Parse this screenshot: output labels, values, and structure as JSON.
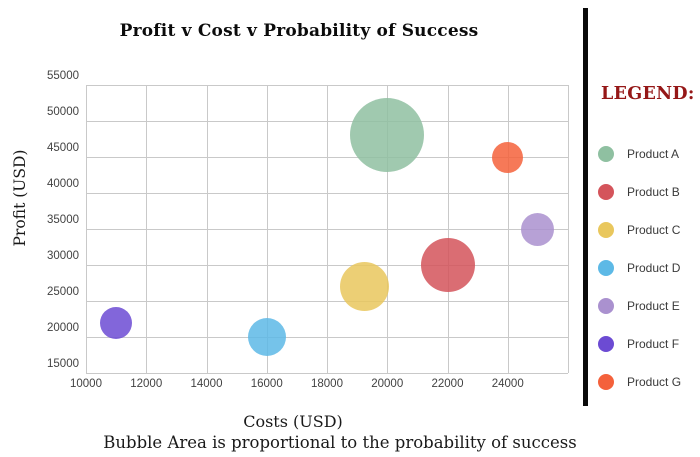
{
  "chart_data": {
    "type": "bubble",
    "title": "Profit v Cost v Probability of Success",
    "xlabel": "Costs (USD)",
    "ylabel": "Profit (USD)",
    "caption": "Bubble Area is proportional to the probability of success",
    "legend_title": "LEGEND:",
    "legend_position": "right",
    "grid": true,
    "xlim": [
      10000,
      26000
    ],
    "ylim": [
      15000,
      55000
    ],
    "x_ticks": [
      10000,
      12000,
      14000,
      16000,
      18000,
      20000,
      22000,
      24000
    ],
    "x_gridline_step": 2000,
    "y_ticks": [
      55000,
      50000,
      45000,
      40000,
      35000,
      30000,
      25000,
      20000,
      15000
    ],
    "points": [
      {
        "name": "Product A",
        "x": 20000,
        "y": 48000,
        "radius_px": 37,
        "color": "#8fc0a1"
      },
      {
        "name": "Product B",
        "x": 22000,
        "y": 30000,
        "radius_px": 27,
        "color": "#d4545b"
      },
      {
        "name": "Product C",
        "x": 19250,
        "y": 27000,
        "radius_px": 24.5,
        "color": "#e9c75d"
      },
      {
        "name": "Product D",
        "x": 16000,
        "y": 20000,
        "radius_px": 19,
        "color": "#5db9e6"
      },
      {
        "name": "Product E",
        "x": 25000,
        "y": 35000,
        "radius_px": 16.5,
        "color": "#aa91cf"
      },
      {
        "name": "Product F",
        "x": 11000,
        "y": 22000,
        "radius_px": 16,
        "color": "#6c4bd3"
      },
      {
        "name": "Product G",
        "x": 24000,
        "y": 45000,
        "radius_px": 15.5,
        "color": "#f4613b"
      }
    ],
    "colors": {
      "background": "#ffffff",
      "title": "#0b0b0b",
      "axis_title": "#1a1a1a",
      "tick_label": "#424242",
      "grid": "#c9c9c9",
      "legend_title": "#951717",
      "legend_label": "#3a3a3a",
      "divider": "#0a0a0a"
    }
  }
}
